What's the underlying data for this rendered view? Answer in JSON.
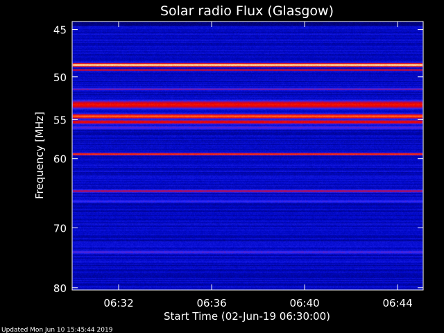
{
  "chart_data": {
    "type": "heatmap",
    "title": "Solar radio Flux (Glasgow)",
    "xlabel": "Start Time (02-Jun-19 06:30:00)",
    "ylabel": "Frequency [MHz]",
    "x_range_minutes": [
      0,
      15.1
    ],
    "x_ticks": [
      {
        "minute": 2,
        "label": "06:32"
      },
      {
        "minute": 6,
        "label": "06:36"
      },
      {
        "minute": 10,
        "label": "06:40"
      },
      {
        "minute": 14,
        "label": "06:44"
      }
    ],
    "y_scale": "log",
    "ylim": [
      44.2,
      80.4
    ],
    "y_ticks": [
      45,
      50,
      55,
      60,
      70,
      80
    ],
    "colormap": [
      "#000060",
      "#0008c8",
      "#2a2aff",
      "#9a1078",
      "#e80000",
      "#ff3a10",
      "#ff9a40",
      "#fff4d0"
    ],
    "bands": [
      {
        "freq": 48.7,
        "level": 1.0,
        "width": 0.22
      },
      {
        "freq": 49.25,
        "level": 0.58,
        "width": 0.12
      },
      {
        "freq": 51.4,
        "level": 0.42,
        "width": 0.15
      },
      {
        "freq": 53.2,
        "level": 0.62,
        "width": 0.55
      },
      {
        "freq": 54.6,
        "level": 0.78,
        "width": 0.32
      },
      {
        "freq": 55.3,
        "level": 0.6,
        "width": 0.3
      },
      {
        "freq": 56.0,
        "level": 0.34,
        "width": 0.3
      },
      {
        "freq": 59.4,
        "level": 0.72,
        "width": 0.18
      },
      {
        "freq": 64.5,
        "level": 0.48,
        "width": 0.25
      },
      {
        "freq": 66.0,
        "level": 0.3,
        "width": 0.3
      },
      {
        "freq": 73.9,
        "level": 0.34,
        "width": 0.35
      }
    ]
  },
  "footer": {
    "updated": "Updated Mon Jun 10 15:45:44 2019"
  }
}
